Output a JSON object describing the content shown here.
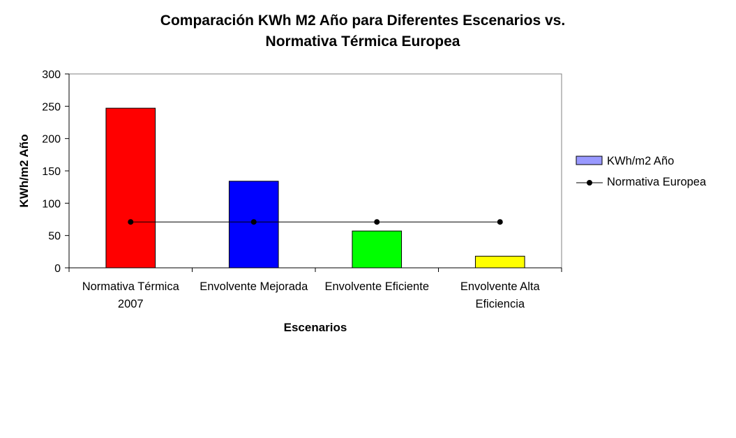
{
  "chart_data": {
    "type": "bar",
    "title_lines": [
      "Comparación KWh M2 Año para Diferentes Escenarios vs.",
      "Normativa Térmica Europea"
    ],
    "xlabel": "Escenarios",
    "ylabel": "KWh/m2 Año",
    "categories": [
      [
        "Normativa Térmica",
        "2007"
      ],
      [
        "Envolvente Mejorada"
      ],
      [
        "Envolvente Eficiente"
      ],
      [
        "Envolvente Alta",
        "Eficiencia"
      ]
    ],
    "ylim": [
      0,
      300
    ],
    "yticks": [
      0,
      50,
      100,
      150,
      200,
      250,
      300
    ],
    "grid": false,
    "legend_position": "right",
    "series": [
      {
        "name": "KWh/m2 Año",
        "type": "bar",
        "values": [
          247,
          134,
          57,
          18
        ],
        "colors": [
          "#ff0000",
          "#0000ff",
          "#00ff00",
          "#ffff00"
        ],
        "legend_color": "#9999ff"
      },
      {
        "name": "Normativa Europea",
        "type": "line",
        "values": [
          71,
          71,
          71,
          71
        ],
        "color": "#000000"
      }
    ]
  }
}
